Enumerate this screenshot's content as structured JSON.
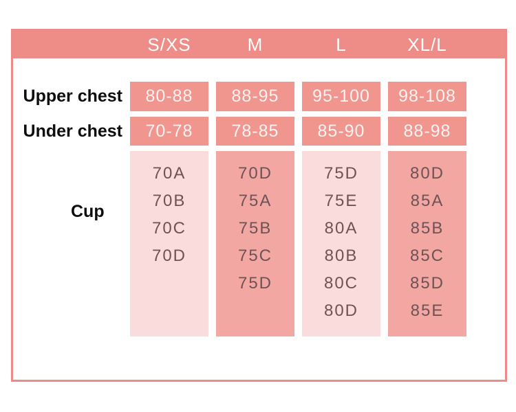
{
  "size_chart": {
    "columns": [
      "S/XS",
      "M",
      "L",
      "XL/L"
    ],
    "rows": [
      {
        "label": "Upper chest",
        "values": [
          "80-88",
          "88-95",
          "95-100",
          "98-108"
        ]
      },
      {
        "label": "Under chest",
        "values": [
          "70-78",
          "78-85",
          "85-90",
          "88-98"
        ]
      }
    ],
    "cup_label": "Cup",
    "cup_columns": [
      [
        "70A",
        "70B",
        "70C",
        "70D"
      ],
      [
        "70D",
        "75A",
        "75B",
        "75C",
        "75D"
      ],
      [
        "75D",
        "75E",
        "80A",
        "80B",
        "80C",
        "80D"
      ],
      [
        "80D",
        "85A",
        "85B",
        "85C",
        "85D",
        "85E"
      ]
    ],
    "colors": {
      "accent_salmon": "#ee8d87",
      "value_cell_bg": "#f0968f",
      "cup_light_bg": "#fbdcdc",
      "cup_dark_bg": "#f2a7a3",
      "cup_text": "#6f5253",
      "value_cell_text": "#fdf3f2",
      "header_text": "#ffffff",
      "label_text": "#0e0e0e"
    }
  }
}
